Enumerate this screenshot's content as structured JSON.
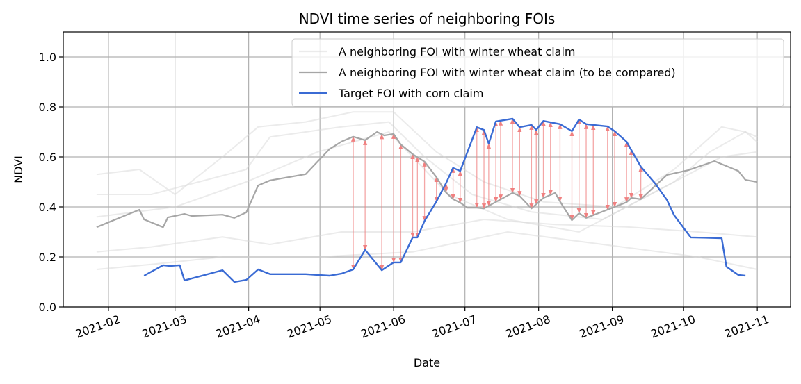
{
  "chart_data": {
    "type": "line",
    "title": "NDVI time series of neighboring FOIs",
    "xlabel": "Date",
    "ylabel": "NDVI",
    "xlim": [
      13,
      319
    ],
    "ylim": [
      0,
      1.1
    ],
    "xticks": [
      {
        "value": 32,
        "label": "2021-02"
      },
      {
        "value": 60,
        "label": "2021-03"
      },
      {
        "value": 91,
        "label": "2021-04"
      },
      {
        "value": 121,
        "label": "2021-05"
      },
      {
        "value": 152,
        "label": "2021-06"
      },
      {
        "value": 182,
        "label": "2021-07"
      },
      {
        "value": 213,
        "label": "2021-08"
      },
      {
        "value": 244,
        "label": "2021-09"
      },
      {
        "value": 274,
        "label": "2021-10"
      },
      {
        "value": 305,
        "label": "2021-11"
      }
    ],
    "yticks": [
      {
        "value": 0,
        "label": "0.0"
      },
      0.2,
      0.4,
      0.6,
      0.8,
      {
        "value": 1,
        "label": "1.0"
      }
    ],
    "grid": true,
    "legend": "upper right",
    "series": [
      {
        "name": "A neighboring FOI with winter wheat claim",
        "color": "#d8d8d8",
        "lines": [
          {
            "x": [
              27,
              45,
              60,
              80,
              95,
              115,
              135,
              152,
              170,
              190,
              215,
              245,
              270,
              290,
              300,
              305
            ],
            "values": [
              0.53,
              0.55,
              0.45,
              0.6,
              0.72,
              0.74,
              0.78,
              0.78,
              0.62,
              0.5,
              0.42,
              0.4,
              0.55,
              0.72,
              0.7,
              0.68
            ]
          },
          {
            "x": [
              27,
              50,
              70,
              90,
              100,
              130,
              150,
              165,
              185,
              210,
              240,
              270,
              285,
              300,
              305
            ],
            "values": [
              0.45,
              0.45,
              0.5,
              0.55,
              0.68,
              0.72,
              0.74,
              0.6,
              0.45,
              0.38,
              0.35,
              0.5,
              0.62,
              0.7,
              0.66
            ]
          },
          {
            "x": [
              27,
              50,
              80,
              100,
              130,
              160,
              190,
              220,
              250,
              280,
              305
            ],
            "values": [
              0.22,
              0.24,
              0.28,
              0.25,
              0.3,
              0.3,
              0.35,
              0.33,
              0.32,
              0.3,
              0.28
            ]
          },
          {
            "x": [
              27,
              50,
              80,
              120,
              160,
              200,
              240,
              280,
              305
            ],
            "values": [
              0.15,
              0.17,
              0.2,
              0.2,
              0.22,
              0.3,
              0.25,
              0.2,
              0.15
            ]
          },
          {
            "x": [
              27,
              60,
              90,
              120,
              150,
              175,
              200,
              230,
              260,
              290,
              305
            ],
            "values": [
              0.36,
              0.4,
              0.5,
              0.62,
              0.7,
              0.45,
              0.35,
              0.3,
              0.45,
              0.6,
              0.62
            ]
          }
        ]
      },
      {
        "name": "A neighboring FOI with winter wheat claim (to be compared)",
        "color": "#a6a6a6",
        "x": [
          27,
          45,
          47,
          55,
          57,
          64,
          67,
          80,
          85,
          90,
          95,
          100,
          115,
          125,
          130,
          135,
          140,
          145,
          148,
          152,
          155,
          160,
          165,
          170,
          174,
          177,
          180,
          183,
          187,
          190,
          202,
          205,
          210,
          215,
          220,
          222,
          227,
          230,
          233,
          245,
          250,
          252,
          256,
          267,
          276,
          287,
          297,
          300,
          305
        ],
        "values": [
          0.319,
          0.389,
          0.35,
          0.319,
          0.358,
          0.372,
          0.364,
          0.369,
          0.356,
          0.378,
          0.486,
          0.506,
          0.531,
          0.631,
          0.661,
          0.681,
          0.667,
          0.7,
          0.686,
          0.692,
          0.65,
          0.611,
          0.581,
          0.519,
          0.458,
          0.431,
          0.417,
          0.397,
          0.397,
          0.394,
          0.456,
          0.444,
          0.394,
          0.436,
          0.456,
          0.422,
          0.347,
          0.375,
          0.356,
          0.4,
          0.419,
          0.436,
          0.431,
          0.528,
          0.547,
          0.583,
          0.544,
          0.508,
          0.5
        ]
      },
      {
        "name": "Target FOI with corn claim",
        "color": "#3a6bd4",
        "x": [
          47,
          55,
          58,
          62,
          64,
          80,
          85,
          90,
          95,
          100,
          115,
          125,
          130,
          135,
          140,
          147,
          152,
          155,
          160,
          162,
          165,
          170,
          174,
          177,
          180,
          187,
          190,
          192,
          195,
          202,
          205,
          210,
          212,
          215,
          222,
          227,
          230,
          233,
          242,
          245,
          250,
          256,
          262,
          267,
          270,
          277,
          290,
          292,
          297,
          300
        ],
        "values": [
          0.125,
          0.167,
          0.164,
          0.167,
          0.106,
          0.147,
          0.1,
          0.108,
          0.15,
          0.131,
          0.131,
          0.125,
          0.133,
          0.15,
          0.228,
          0.147,
          0.178,
          0.178,
          0.278,
          0.278,
          0.344,
          0.422,
          0.494,
          0.556,
          0.544,
          0.719,
          0.708,
          0.653,
          0.742,
          0.753,
          0.719,
          0.728,
          0.708,
          0.744,
          0.731,
          0.703,
          0.75,
          0.731,
          0.722,
          0.703,
          0.661,
          0.561,
          0.494,
          0.428,
          0.367,
          0.278,
          0.275,
          0.161,
          0.128,
          0.125
        ]
      }
    ],
    "comparison_arrows": {
      "color": "#f08080",
      "x": [
        135,
        140,
        147,
        152,
        155,
        160,
        162,
        165,
        170,
        174,
        177,
        180,
        187,
        190,
        192,
        195,
        197,
        202,
        205,
        210,
        212,
        215,
        218,
        222,
        227,
        230,
        233,
        236,
        242,
        245,
        250,
        252,
        256
      ]
    }
  }
}
